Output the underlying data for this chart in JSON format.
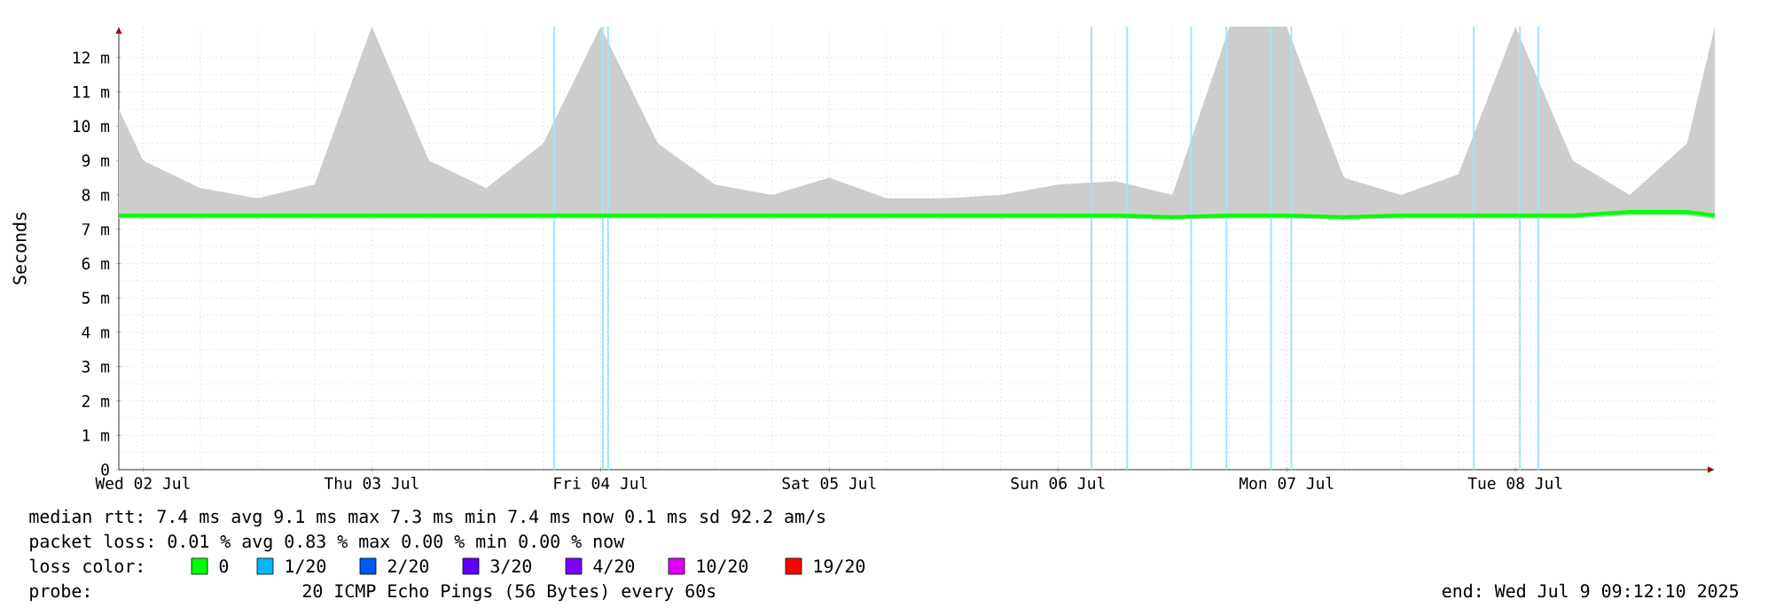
{
  "chart_data": {
    "type": "line",
    "ylabel": "Seconds",
    "xlim": [
      "2025-07-02T09:27",
      "2025-07-09T08:55"
    ],
    "xticks": [
      {
        "value": "2025-07-02T12:00",
        "label": "Wed 02 Jul"
      },
      {
        "value": "2025-07-03T12:00",
        "label": "Thu 03 Jul"
      },
      {
        "value": "2025-07-04T12:00",
        "label": "Fri 04 Jul"
      },
      {
        "value": "2025-07-05T12:00",
        "label": "Sat 05 Jul"
      },
      {
        "value": "2025-07-06T12:00",
        "label": "Sun 06 Jul"
      },
      {
        "value": "2025-07-07T12:00",
        "label": "Mon 07 Jul"
      },
      {
        "value": "2025-07-08T12:00",
        "label": "Tue 08 Jul"
      }
    ],
    "ylim": [
      0,
      12.9
    ],
    "yticks": [
      0,
      {
        "value": 1,
        "label": "1 m"
      },
      {
        "value": 2,
        "label": "2 m"
      },
      {
        "value": 3,
        "label": "3 m"
      },
      {
        "value": 4,
        "label": "4 m"
      },
      {
        "value": 5,
        "label": "5 m"
      },
      {
        "value": 6,
        "label": "6 m"
      },
      {
        "value": 7,
        "label": "7 m"
      },
      {
        "value": 8,
        "label": "8 m"
      },
      {
        "value": 9,
        "label": "9 m"
      },
      {
        "value": 10,
        "label": "10 m"
      },
      {
        "value": 11,
        "label": "11 m"
      },
      {
        "value": 12,
        "label": "12 m"
      }
    ],
    "grid": true,
    "marker": "none",
    "line_style": "solid",
    "x": [
      "2025-07-02T09:27",
      "2025-07-02T12:00",
      "2025-07-02T18:00",
      "2025-07-03T00:00",
      "2025-07-03T06:00",
      "2025-07-03T12:00",
      "2025-07-03T18:00",
      "2025-07-04T00:00",
      "2025-07-04T06:00",
      "2025-07-04T12:00",
      "2025-07-04T18:00",
      "2025-07-05T00:00",
      "2025-07-05T06:00",
      "2025-07-05T12:00",
      "2025-07-05T18:00",
      "2025-07-06T00:00",
      "2025-07-06T06:00",
      "2025-07-06T12:00",
      "2025-07-06T18:00",
      "2025-07-07T00:00",
      "2025-07-07T06:00",
      "2025-07-07T12:00",
      "2025-07-07T18:00",
      "2025-07-08T00:00",
      "2025-07-08T06:00",
      "2025-07-08T12:00",
      "2025-07-08T18:00",
      "2025-07-09T00:00",
      "2025-07-09T06:00",
      "2025-07-09T08:55"
    ],
    "series": [
      {
        "color": "#00ff00",
        "values": [
          7.4,
          7.4,
          7.4,
          7.4,
          7.4,
          7.4,
          7.4,
          7.4,
          7.4,
          7.4,
          7.4,
          7.4,
          7.4,
          7.4,
          7.4,
          7.4,
          7.4,
          7.4,
          7.4,
          7.35,
          7.4,
          7.4,
          7.35,
          7.4,
          7.4,
          7.4,
          7.4,
          7.5,
          7.5,
          7.4
        ],
        "lower": [
          7.3,
          7.3,
          7.3,
          7.3,
          7.3,
          7.3,
          7.3,
          7.3,
          7.3,
          7.3,
          7.3,
          7.3,
          7.3,
          7.3,
          7.3,
          7.3,
          7.3,
          7.3,
          7.3,
          7.3,
          7.3,
          7.3,
          7.3,
          7.3,
          7.3,
          7.3,
          7.3,
          7.4,
          7.4,
          7.3
        ],
        "upper": [
          10.5,
          9,
          8.2,
          7.9,
          8.3,
          12.9,
          9,
          8.2,
          9.5,
          12.9,
          9.5,
          8.3,
          8,
          8.5,
          7.9,
          7.9,
          8,
          8.3,
          8.4,
          8,
          12.9,
          12.9,
          8.5,
          8,
          8.6,
          12.9,
          9,
          8,
          9.5,
          12.9
        ]
      }
    ],
    "ref_lines": [
      {
        "axis": "x",
        "value": "2025-07-04T07:08",
        "color": "#a0e4ff"
      },
      {
        "axis": "x",
        "value": "2025-07-04T12:14",
        "color": "#a0e4ff"
      },
      {
        "axis": "x",
        "value": "2025-07-04T12:47",
        "color": "#a0e4ff"
      },
      {
        "axis": "x",
        "value": "2025-07-06T15:31",
        "color": "#a0e4ff"
      },
      {
        "axis": "x",
        "value": "2025-07-06T19:15",
        "color": "#a0e4ff"
      },
      {
        "axis": "x",
        "value": "2025-07-07T01:58",
        "color": "#a0e4ff"
      },
      {
        "axis": "x",
        "value": "2025-07-07T05:41",
        "color": "#a0e4ff"
      },
      {
        "axis": "x",
        "value": "2025-07-07T10:21",
        "color": "#a0e4ff"
      },
      {
        "axis": "x",
        "value": "2025-07-07T12:29",
        "color": "#a0e4ff"
      },
      {
        "axis": "x",
        "value": "2025-07-08T07:37",
        "color": "#a0e4ff"
      },
      {
        "axis": "x",
        "value": "2025-07-08T12:28",
        "color": "#a0e4ff"
      },
      {
        "axis": "x",
        "value": "2025-07-08T14:24",
        "color": "#a0e4ff"
      }
    ],
    "annotations": [
      "median rtt:  7.4 ms avg  9.1 ms max  7.3 ms min  7.4 ms now  0.1 ms sd  92.2   am/s",
      "packet loss: 0.01 % avg  0.83 % max  0.00 % min  0.00 % now",
      "loss color:",
      "0",
      "1/20",
      "2/20",
      "3/20",
      "4/20",
      "10/20",
      "19/20",
      "probe:",
      "20 ICMP Echo Pings (56 Bytes) every 60s",
      "end: Wed Jul  9 09:12:10 2025"
    ]
  }
}
